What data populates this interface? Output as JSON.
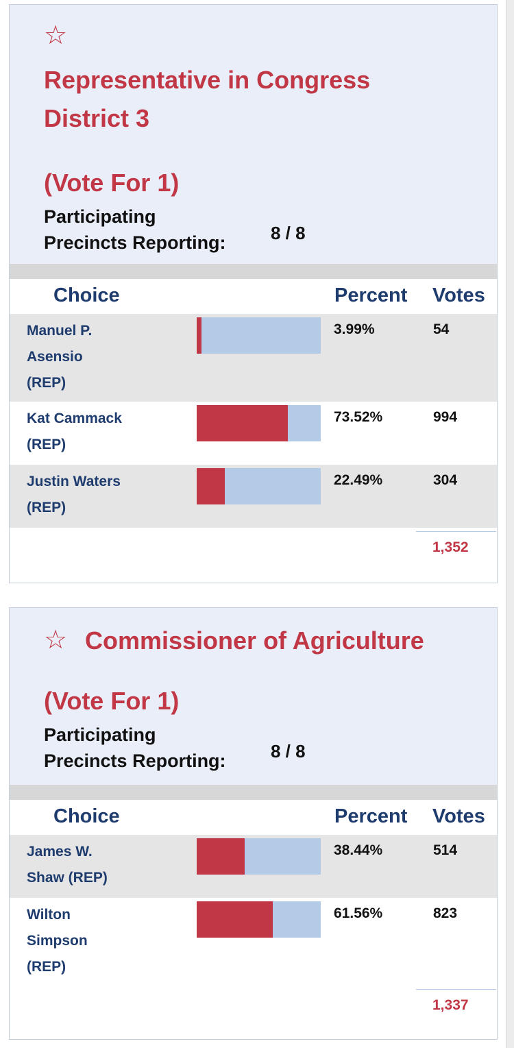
{
  "races": [
    {
      "title_lines": [
        "Representative in Congress",
        "District 3"
      ],
      "vote_for": "(Vote For 1)",
      "precincts_label_lines": [
        "Participating",
        "Precincts Reporting:"
      ],
      "precincts_value": "8 / 8",
      "headers": {
        "choice": "Choice",
        "percent": "Percent",
        "votes": "Votes"
      },
      "candidates": [
        {
          "name_lines": [
            "Manuel P.",
            "Asensio",
            "(REP)"
          ],
          "percent": "3.99%",
          "votes": "54",
          "share": 0.0399
        },
        {
          "name_lines": [
            "Kat Cammack",
            "(REP)"
          ],
          "percent": "73.52%",
          "votes": "994",
          "share": 0.7352
        },
        {
          "name_lines": [
            "Justin Waters",
            "(REP)"
          ],
          "percent": "22.49%",
          "votes": "304",
          "share": 0.2249
        }
      ],
      "total_votes": "1,352"
    },
    {
      "title_lines": [
        "Commissioner of Agriculture"
      ],
      "vote_for": "(Vote For 1)",
      "precincts_label_lines": [
        "Participating",
        "Precincts Reporting:"
      ],
      "precincts_value": "8 / 8",
      "headers": {
        "choice": "Choice",
        "percent": "Percent",
        "votes": "Votes"
      },
      "candidates": [
        {
          "name_lines": [
            "James W.",
            "Shaw (REP)"
          ],
          "percent": "38.44%",
          "votes": "514",
          "share": 0.3844
        },
        {
          "name_lines": [
            "Wilton",
            "Simpson",
            "(REP)"
          ],
          "percent": "61.56%",
          "votes": "823",
          "share": 0.6156
        }
      ],
      "total_votes": "1,337"
    }
  ],
  "colors": {
    "accent": "#c13745",
    "bar_bg": "#b3cbe6",
    "header_bg": "#e9eef8",
    "name_text": "#1f3c6e"
  },
  "icons": {
    "favorite": "star-outline-icon"
  }
}
